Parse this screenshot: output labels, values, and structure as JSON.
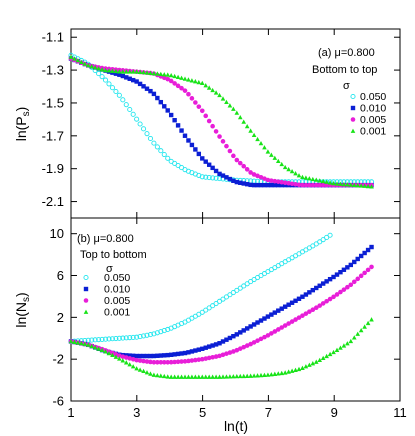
{
  "chart_data": [
    {
      "type": "scatter",
      "panel_label": "(a) μ=0.800",
      "legend_title": "Bottom to top",
      "legend_header": "σ",
      "ylabel": "ln(P",
      "ylabel_sub": "s",
      "ylabel_tail": ")",
      "xlabel": "",
      "xlim": [
        1,
        11
      ],
      "ylim": [
        -2.2,
        -1.05
      ],
      "yticks": [
        -2.1,
        -1.9,
        -1.7,
        -1.5,
        -1.3,
        -1.1
      ],
      "ytick_labels": [
        "-2.1",
        "-1.9",
        "-1.7",
        "-1.5",
        "-1.3",
        "-1.1"
      ],
      "legend_position": "top-right",
      "series": [
        {
          "name": "0.050",
          "color": "#22e6ee",
          "marker": "open-circle",
          "x": [
            1,
            1.5,
            2,
            2.5,
            3,
            3.5,
            4,
            4.5,
            5,
            6,
            7,
            8,
            9,
            10.2
          ],
          "y": [
            -1.21,
            -1.26,
            -1.35,
            -1.46,
            -1.6,
            -1.74,
            -1.85,
            -1.91,
            -1.95,
            -1.97,
            -1.98,
            -1.98,
            -1.98,
            -1.98
          ]
        },
        {
          "name": "0.010",
          "color": "#0b1fd4",
          "marker": "filled-square",
          "x": [
            1,
            1.5,
            2,
            2.5,
            3,
            3.5,
            4,
            4.5,
            5,
            5.5,
            6,
            6.5,
            7,
            8,
            9,
            10.2
          ],
          "y": [
            -1.23,
            -1.27,
            -1.3,
            -1.33,
            -1.37,
            -1.44,
            -1.56,
            -1.71,
            -1.84,
            -1.93,
            -1.98,
            -2.0,
            -2.0,
            -2.0,
            -2.0,
            -2.0
          ]
        },
        {
          "name": "0.005",
          "color": "#e81ed8",
          "marker": "filled-circle",
          "x": [
            1,
            1.5,
            2,
            2.5,
            3,
            3.5,
            4,
            4.5,
            5,
            5.5,
            6,
            6.5,
            7,
            8,
            9,
            10.2
          ],
          "y": [
            -1.23,
            -1.27,
            -1.29,
            -1.3,
            -1.31,
            -1.32,
            -1.36,
            -1.43,
            -1.55,
            -1.7,
            -1.84,
            -1.93,
            -1.97,
            -2.0,
            -2.0,
            -2.0
          ]
        },
        {
          "name": "0.001",
          "color": "#18e318",
          "marker": "filled-triangle",
          "x": [
            1,
            1.5,
            2,
            2.5,
            3,
            3.5,
            4,
            5,
            5.5,
            6,
            6.5,
            7,
            7.5,
            8,
            9,
            10.2
          ],
          "y": [
            -1.22,
            -1.27,
            -1.3,
            -1.31,
            -1.31,
            -1.32,
            -1.33,
            -1.38,
            -1.45,
            -1.55,
            -1.68,
            -1.8,
            -1.89,
            -1.95,
            -1.99,
            -2.01
          ]
        }
      ]
    },
    {
      "type": "scatter",
      "panel_label": "(b) μ=0.800",
      "legend_title": "Top to bottom",
      "legend_header": "σ",
      "ylabel": "ln(N",
      "ylabel_sub": "s",
      "ylabel_tail": ")",
      "xlabel": "ln(t)",
      "xlim": [
        1,
        11
      ],
      "ylim": [
        -6,
        11.5
      ],
      "yticks": [
        -6,
        -2,
        2,
        6,
        10
      ],
      "ytick_labels": [
        "-6",
        "-2",
        "2",
        "6",
        "10"
      ],
      "xticks": [
        1,
        3,
        5,
        7,
        9,
        11
      ],
      "xtick_labels": [
        "1",
        "3",
        "5",
        "7",
        "9",
        "11"
      ],
      "legend_position": "top-left",
      "series": [
        {
          "name": "0.050",
          "color": "#22e6ee",
          "marker": "open-circle",
          "x": [
            1,
            1.5,
            2,
            2.5,
            3,
            3.5,
            4,
            4.5,
            5,
            5.5,
            6,
            6.5,
            7,
            7.5,
            8,
            8.5,
            8.9
          ],
          "y": [
            -0.3,
            -0.2,
            -0.1,
            0.0,
            0.1,
            0.4,
            0.9,
            1.6,
            2.5,
            3.5,
            4.5,
            5.5,
            6.4,
            7.3,
            8.2,
            9.1,
            9.9
          ]
        },
        {
          "name": "0.010",
          "color": "#0b1fd4",
          "marker": "filled-square",
          "x": [
            1,
            1.5,
            2,
            2.5,
            3,
            3.5,
            4,
            4.5,
            5,
            5.5,
            6,
            6.5,
            7,
            7.5,
            8,
            8.5,
            9,
            9.5,
            10.2
          ],
          "y": [
            -0.3,
            -0.6,
            -1.2,
            -1.6,
            -1.7,
            -1.7,
            -1.6,
            -1.4,
            -1.0,
            -0.5,
            0.3,
            1.2,
            2.1,
            3.0,
            3.9,
            4.9,
            5.9,
            7.0,
            8.9
          ]
        },
        {
          "name": "0.005",
          "color": "#e81ed8",
          "marker": "filled-circle",
          "x": [
            1,
            1.5,
            2,
            2.5,
            3,
            3.5,
            4,
            4.5,
            5,
            5.5,
            6,
            6.5,
            7,
            7.5,
            8,
            8.5,
            9,
            9.5,
            10.2
          ],
          "y": [
            -0.3,
            -0.6,
            -1.1,
            -1.7,
            -2.1,
            -2.3,
            -2.3,
            -2.2,
            -2.0,
            -1.7,
            -1.2,
            -0.5,
            0.3,
            1.2,
            2.1,
            3.0,
            4.0,
            5.1,
            7.0
          ]
        },
        {
          "name": "0.001",
          "color": "#18e318",
          "marker": "filled-triangle",
          "x": [
            1,
            1.5,
            2,
            2.5,
            3,
            3.5,
            4,
            4.5,
            5,
            5.5,
            6,
            6.5,
            7,
            7.5,
            8,
            8.5,
            9,
            9.5,
            10.2
          ],
          "y": [
            -0.3,
            -0.6,
            -1.2,
            -2.0,
            -2.9,
            -3.5,
            -3.7,
            -3.7,
            -3.7,
            -3.7,
            -3.65,
            -3.6,
            -3.5,
            -3.3,
            -2.9,
            -2.2,
            -1.3,
            -0.3,
            2.0
          ]
        }
      ]
    }
  ]
}
